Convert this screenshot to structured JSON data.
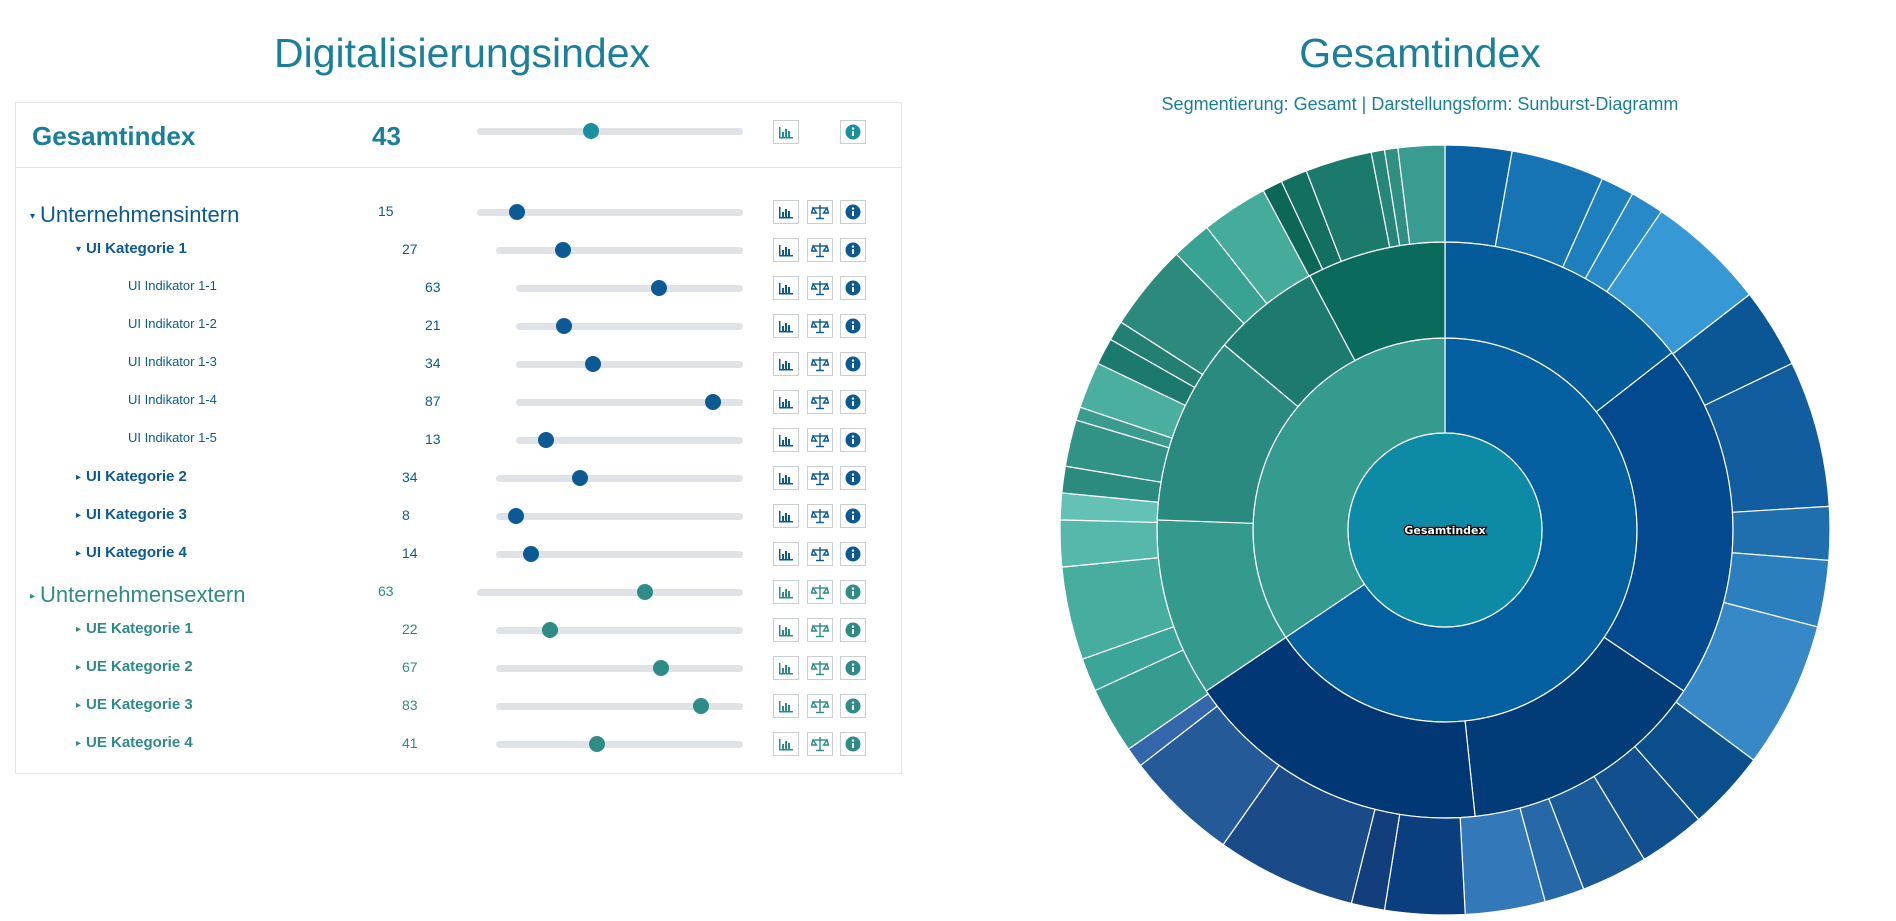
{
  "left_title": "Digitalisierungsindex",
  "right_title": "Gesamtindex",
  "subtitle": "Segmentierung: Gesamt | Darstellungsform: Sunburst-Diagramm",
  "gesamt": {
    "label": "Gesamtindex",
    "value": 43
  },
  "rows": [
    {
      "label": "Unternehmensintern",
      "value": 15,
      "level": 1,
      "caret": "down",
      "color": "blue"
    },
    {
      "label": "UI Kategorie 1",
      "value": 27,
      "level": 2,
      "caret": "down",
      "color": "blue"
    },
    {
      "label": "UI Indikator 1-1",
      "value": 63,
      "level": 3,
      "caret": "",
      "color": "blue"
    },
    {
      "label": "UI Indikator 1-2",
      "value": 21,
      "level": 3,
      "caret": "",
      "color": "blue"
    },
    {
      "label": "UI Indikator 1-3",
      "value": 34,
      "level": 3,
      "caret": "",
      "color": "blue"
    },
    {
      "label": "UI Indikator 1-4",
      "value": 87,
      "level": 3,
      "caret": "",
      "color": "blue"
    },
    {
      "label": "UI Indikator 1-5",
      "value": 13,
      "level": 3,
      "caret": "",
      "color": "blue"
    },
    {
      "label": "UI Kategorie 2",
      "value": 34,
      "level": 2,
      "caret": "right",
      "color": "blue"
    },
    {
      "label": "UI Kategorie 3",
      "value": 8,
      "level": 2,
      "caret": "right",
      "color": "blue"
    },
    {
      "label": "UI Kategorie 4",
      "value": 14,
      "level": 2,
      "caret": "right",
      "color": "blue"
    },
    {
      "label": "Unternehmensextern",
      "value": 63,
      "level": 1,
      "caret": "right",
      "color": "green"
    },
    {
      "label": "UE Kategorie 1",
      "value": 22,
      "level": 2,
      "caret": "right",
      "color": "green"
    },
    {
      "label": "UE Kategorie 2",
      "value": 67,
      "level": 2,
      "caret": "right",
      "color": "green"
    },
    {
      "label": "UE Kategorie 3",
      "value": 83,
      "level": 2,
      "caret": "right",
      "color": "green"
    },
    {
      "label": "UE Kategorie 4",
      "value": 41,
      "level": 2,
      "caret": "right",
      "color": "green"
    }
  ],
  "icons": {
    "chart": "bar-chart-icon",
    "weights": "balance-scale-icon",
    "info": "info-icon"
  },
  "colors": {
    "title": "#1a7f99",
    "blue": "#0b5a94",
    "green": "#2e8b86",
    "knob_gesamt": "#1a8fa0",
    "track": "#dfe3e7"
  },
  "sunburst": {
    "center_label": "Gesamtindex",
    "center_color": "#0d8aa5",
    "rings": [
      [
        {
          "span": 236,
          "color": "#035fa0"
        },
        {
          "span": 124,
          "color": "#359b8f"
        }
      ],
      [
        {
          "span": 52,
          "color": "#035b99"
        },
        {
          "span": 72,
          "color": "#02498f"
        },
        {
          "span": 50,
          "color": "#013b78"
        },
        {
          "span": 62,
          "color": "#023775"
        },
        {
          "span": 36,
          "color": "#349a8e"
        },
        {
          "span": 38,
          "color": "#2a8a7f"
        },
        {
          "span": 22,
          "color": "#1d7a6e"
        },
        {
          "span": 28,
          "color": "#0a6a5c"
        }
      ],
      [
        {
          "span": 10,
          "color": "#0a62a3"
        },
        {
          "span": 14,
          "color": "#1674b4"
        },
        {
          "span": 5,
          "color": "#1e7fbf"
        },
        {
          "span": 5,
          "color": "#2789c8"
        },
        {
          "span": 18,
          "color": "#3798d6"
        },
        {
          "span": 12,
          "color": "#0b5796"
        },
        {
          "span": 22,
          "color": "#115da0"
        },
        {
          "span": 8,
          "color": "#1f6faf"
        },
        {
          "span": 10,
          "color": "#2c7fbe"
        },
        {
          "span": 22,
          "color": "#3688c6"
        },
        {
          "span": 12,
          "color": "#0a4e8c"
        },
        {
          "span": 10,
          "color": "#124f8e"
        },
        {
          "span": 10,
          "color": "#1a5a98"
        },
        {
          "span": 6,
          "color": "#2768a8"
        },
        {
          "span": 12,
          "color": "#3378b8"
        },
        {
          "span": 12,
          "color": "#0b3e7f"
        },
        {
          "span": 5,
          "color": "#123f7c"
        },
        {
          "span": 21,
          "color": "#1a4a88"
        },
        {
          "span": 17,
          "color": "#255a98"
        },
        {
          "span": 3,
          "color": "#3366aa"
        },
        {
          "span": 10,
          "color": "#359c8f"
        },
        {
          "span": 5,
          "color": "#3aa598"
        },
        {
          "span": 14,
          "color": "#47ae9f"
        },
        {
          "span": 7,
          "color": "#56b8ab"
        },
        {
          "span": 4,
          "color": "#63c2b5"
        },
        {
          "span": 4,
          "color": "#2b8b7f"
        },
        {
          "span": 7,
          "color": "#319286"
        },
        {
          "span": 2,
          "color": "#3a9b8f"
        },
        {
          "span": 7,
          "color": "#4aaf9f"
        },
        {
          "span": 4,
          "color": "#1b7a6d"
        },
        {
          "span": 3,
          "color": "#237f72"
        },
        {
          "span": 13,
          "color": "#2c8a7c"
        },
        {
          "span": 6,
          "color": "#38a393"
        },
        {
          "span": 10,
          "color": "#45ab9b"
        },
        {
          "span": 3,
          "color": "#0c6757"
        },
        {
          "span": 4,
          "color": "#136f60"
        },
        {
          "span": 10,
          "color": "#1b7a6c"
        },
        {
          "span": 2,
          "color": "#26867a"
        },
        {
          "span": 2,
          "color": "#2f8f83"
        },
        {
          "span": 7,
          "color": "#3a9c90"
        }
      ]
    ]
  }
}
